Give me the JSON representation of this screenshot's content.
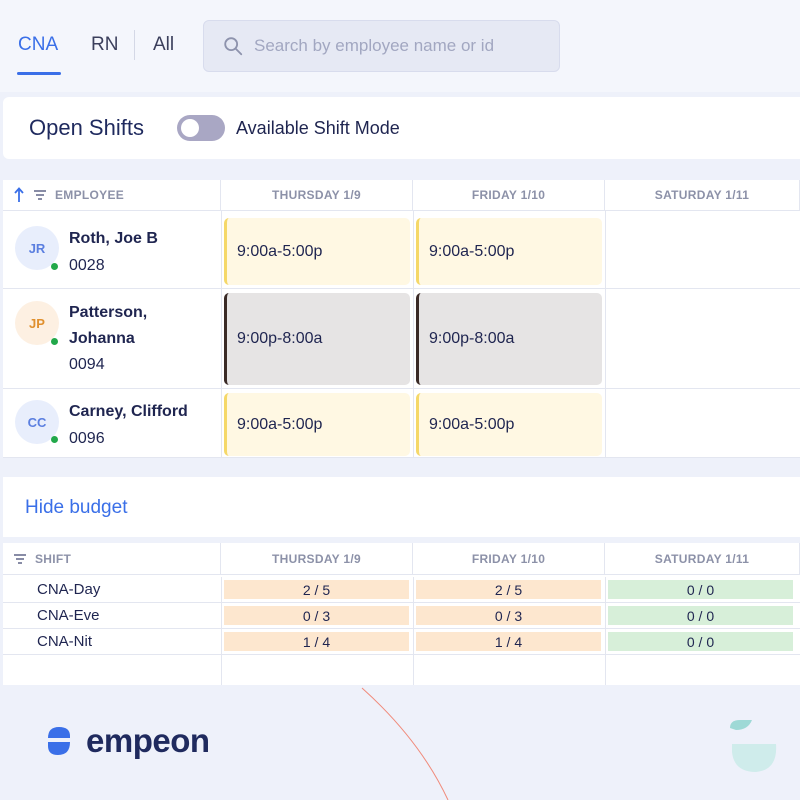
{
  "tabs": [
    {
      "label": "CNA",
      "active": true
    },
    {
      "label": "RN",
      "active": false
    },
    {
      "label": "All",
      "active": false
    }
  ],
  "search": {
    "placeholder": "Search by employee name or id",
    "icon": "search-icon"
  },
  "open_shifts": {
    "title": "Open Shifts",
    "toggle_label": "Available Shift Mode",
    "toggle_on": false
  },
  "schedule": {
    "employee_header": "EMPLOYEE",
    "days": [
      "THURSDAY 1/9",
      "FRIDAY 1/10",
      "SATURDAY 1/11"
    ],
    "employees": [
      {
        "initials": "JR",
        "name": "Roth, Joe B",
        "id": "0028",
        "avatar_color": "#e8eefc",
        "initials_color": "#5b7fe0",
        "shifts": [
          "9:00a-5:00p",
          "9:00a-5:00p",
          ""
        ]
      },
      {
        "initials": "JP",
        "name": "Patterson, Johanna",
        "id": "0094",
        "avatar_color": "#fdf0e2",
        "initials_color": "#e0902e",
        "shifts": [
          "9:00p-8:00a",
          "9:00p-8:00a",
          ""
        ]
      },
      {
        "initials": "CC",
        "name": "Carney, Clifford",
        "id": "0096",
        "avatar_color": "#e8eefc",
        "initials_color": "#5b7fe0",
        "shifts": [
          "9:00a-5:00p",
          "9:00a-5:00p",
          ""
        ]
      }
    ]
  },
  "budget": {
    "toggle_label": "Hide budget",
    "shift_header": "SHIFT",
    "days": [
      "THURSDAY 1/9",
      "FRIDAY 1/10",
      "SATURDAY 1/11"
    ],
    "rows": [
      {
        "name": "CNA-Day",
        "values": [
          "2 / 5",
          "2 / 5",
          "0 / 0"
        ]
      },
      {
        "name": "CNA-Eve",
        "values": [
          "0 / 3",
          "0 / 3",
          "0 / 0"
        ]
      },
      {
        "name": "CNA-Nit",
        "values": [
          "1 / 4",
          "1 / 4",
          "0 / 0"
        ]
      }
    ]
  },
  "brand": {
    "name": "empeon",
    "accent": "#3a6fe8"
  }
}
